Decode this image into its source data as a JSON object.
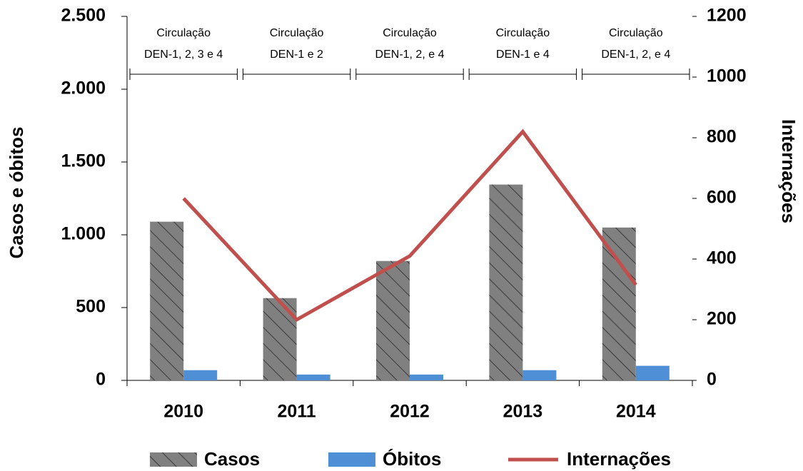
{
  "chart_data": {
    "type": "bar-line",
    "categories": [
      "2010",
      "2011",
      "2012",
      "2013",
      "2014"
    ],
    "y_label": "Casos e óbitos",
    "y2_label": "Internações",
    "series": [
      {
        "name": "Casos",
        "color": "#808080",
        "type": "bar",
        "hatch": true,
        "values": [
          1090,
          565,
          820,
          1345,
          1050
        ]
      },
      {
        "name": "Óbitos",
        "color": "#4f8fd6",
        "type": "bar",
        "values": [
          70,
          40,
          40,
          70,
          100
        ]
      },
      {
        "name": "Internações",
        "color": "#c0504d",
        "type": "line",
        "axis": "y2",
        "values": [
          600,
          200,
          410,
          820,
          315
        ]
      }
    ],
    "ylim": [
      0,
      2500
    ],
    "yticks": [
      0,
      500,
      {
        "value": 1000,
        "label": "1.000"
      },
      {
        "value": 1500,
        "label": "1.500"
      },
      {
        "value": 2000,
        "label": "2.000"
      },
      {
        "value": 2500,
        "label": "2.500"
      }
    ],
    "y2lim": [
      0,
      1200
    ],
    "y2ticks": [
      0,
      200,
      400,
      600,
      800,
      1000,
      1200
    ],
    "annotations": [
      [
        "Circulação",
        "DEN-1, 2, 3 e 4"
      ],
      [
        "Circulação",
        "DEN-1 e 2"
      ],
      [
        "Circulação",
        "DEN-1, 2, e 4"
      ],
      [
        "Circulação",
        "DEN-1 e 4"
      ],
      [
        "Circulação",
        "DEN-1, 2, e 4"
      ]
    ],
    "legend": "bottom",
    "grid": false
  }
}
